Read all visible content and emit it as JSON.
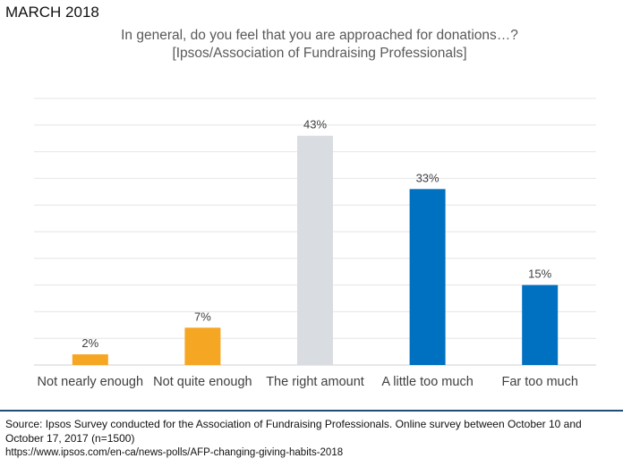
{
  "header": {
    "date": "MARCH 2018",
    "title_line1": "In general, do you feel that you are approached for donations…?",
    "title_line2": "[Ipsos/Association of Fundraising Professionals]"
  },
  "chart_data": {
    "type": "bar",
    "title": "In general, do you feel that you are approached for donations…?",
    "subtitle": "[Ipsos/Association of Fundraising Professionals]",
    "categories": [
      "Not nearly enough",
      "Not quite enough",
      "The right amount",
      "A little too much",
      "Far too much"
    ],
    "values": [
      2,
      7,
      43,
      33,
      15
    ],
    "value_labels": [
      "2%",
      "7%",
      "43%",
      "33%",
      "15%"
    ],
    "colors": [
      "#f5a623",
      "#f5a623",
      "#d9dde1",
      "#0070c0",
      "#0070c0"
    ],
    "ylim": [
      0,
      50
    ],
    "grid": true,
    "legend": "none",
    "xlabel": "",
    "ylabel": ""
  },
  "footer": {
    "source_text": "Source: Ipsos Survey conducted for the Association of Fundraising Professionals. Online survey between October 10 and October 17, 2017 (n=1500)",
    "source_url": "https://www.ipsos.com/en-ca/news-polls/AFP-changing-giving-habits-2018",
    "rule_color": "#1f4e79"
  }
}
